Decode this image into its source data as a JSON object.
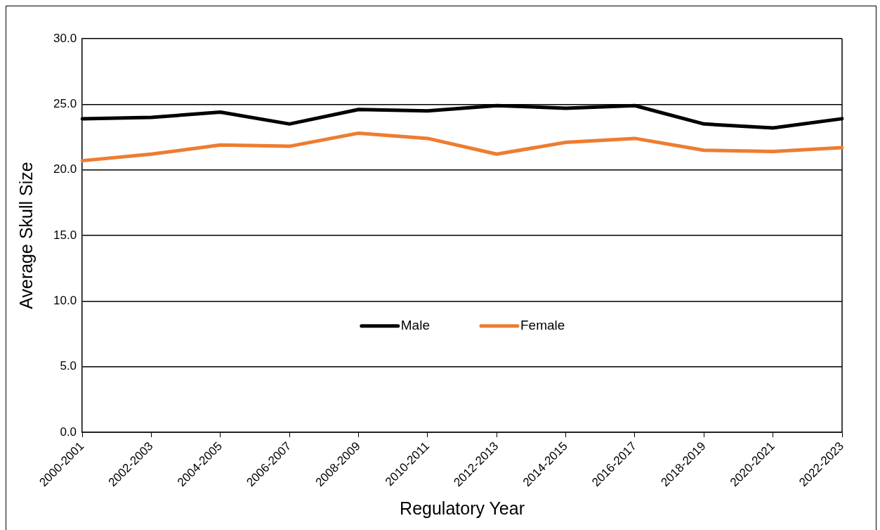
{
  "chart_data": {
    "type": "line",
    "xlabel": "Regulatory Year",
    "ylabel": "Average Skull Size",
    "categories": [
      "2000-2001",
      "2002-2003",
      "2004-2005",
      "2006-2007",
      "2008-2009",
      "2010-2011",
      "2012-2013",
      "2014-2015",
      "2016-2017",
      "2018-2019",
      "2020-2021",
      "2022-2023"
    ],
    "series": [
      {
        "name": "Male",
        "color": "#000000",
        "values": [
          23.9,
          24.0,
          24.4,
          23.5,
          24.6,
          24.5,
          24.9,
          24.7,
          24.9,
          23.5,
          23.2,
          23.9
        ]
      },
      {
        "name": "Female",
        "color": "#ed7d31",
        "values": [
          20.7,
          21.2,
          21.9,
          21.8,
          22.8,
          22.4,
          21.2,
          22.1,
          22.4,
          21.5,
          21.4,
          21.7
        ]
      }
    ],
    "ylim": [
      0,
      30
    ],
    "yticks": [
      {
        "value": 0,
        "label": "0.0"
      },
      {
        "value": 5,
        "label": "5.0"
      },
      {
        "value": 10,
        "label": "10.0"
      },
      {
        "value": 15,
        "label": "15.0"
      },
      {
        "value": 20,
        "label": "20.0"
      },
      {
        "value": 25,
        "label": "25.0"
      },
      {
        "value": 30,
        "label": "30.0"
      }
    ],
    "grid": "y",
    "legend": "center",
    "marker": "none",
    "line_style": "solid"
  }
}
